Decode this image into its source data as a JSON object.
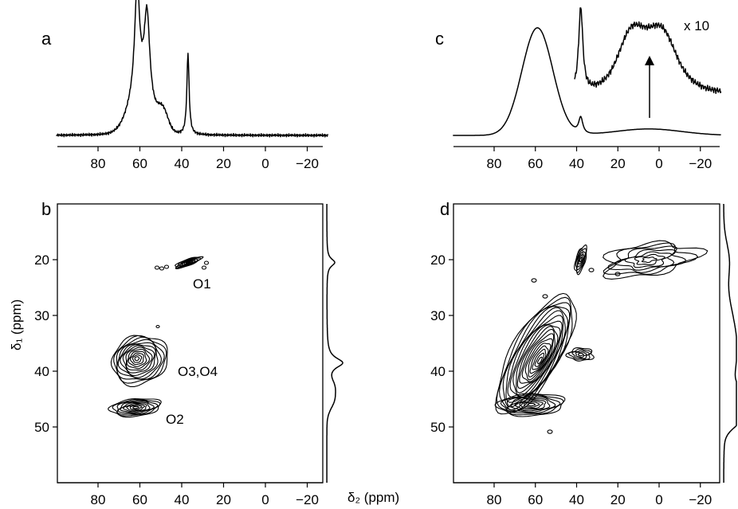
{
  "figure": {
    "x_axis_title": "δ₂ (ppm)",
    "y_axis_title": "δ₁ (ppm)"
  },
  "chart_data": [
    {
      "panel": "a",
      "type": "line",
      "description_kind": "1D spectrum",
      "x_reversed": true,
      "xlim": [
        100,
        -30
      ],
      "x_ticks": [
        80,
        60,
        40,
        20,
        0,
        -20
      ],
      "x_tick_labels": [
        "80",
        "60",
        "40",
        "20",
        "0",
        "−20"
      ],
      "y_axis_shown": false,
      "peaks": [
        {
          "position_ppm": 61,
          "relative_height": 1.0
        },
        {
          "position_ppm": 57,
          "relative_height": 0.87
        },
        {
          "position_ppm": 37,
          "relative_height": 0.71
        }
      ]
    },
    {
      "panel": "b",
      "type": "heatmap",
      "description_kind": "2D contour map",
      "x_reversed": true,
      "xlim": [
        100,
        -30
      ],
      "x_ticks": [
        80,
        60,
        40,
        20,
        0,
        -20
      ],
      "x_tick_labels": [
        "80",
        "60",
        "40",
        "20",
        "0",
        "−20"
      ],
      "y_reversed": true,
      "ylim": [
        10,
        60
      ],
      "y_ticks": [
        20,
        30,
        40,
        50
      ],
      "y_tick_labels": [
        "20",
        "30",
        "40",
        "50"
      ],
      "annotations": [
        {
          "text": "O1",
          "x_ppm": 33,
          "y_ppm": 24
        },
        {
          "text": "O3,O4",
          "x_ppm": 40,
          "y_ppm": 40
        },
        {
          "text": "O2",
          "x_ppm": 50,
          "y_ppm": 48
        }
      ],
      "contour_features": [
        {
          "name": "O1",
          "center_x_ppm": 37,
          "center_y_ppm": 20.5
        },
        {
          "name": "O3,O4",
          "center_x_ppm": 60,
          "center_y_ppm": 38
        },
        {
          "name": "O2",
          "center_x_ppm": 62,
          "center_y_ppm": 46.5
        }
      ],
      "side_projection_peaks_y_ppm": [
        20.5,
        38.5,
        46.5
      ]
    },
    {
      "panel": "c",
      "type": "line",
      "description_kind": "1D spectrum with x10 expansion",
      "x_reversed": true,
      "xlim": [
        100,
        -30
      ],
      "x_ticks": [
        80,
        60,
        40,
        20,
        0,
        -20
      ],
      "x_tick_labels": [
        "80",
        "60",
        "40",
        "20",
        "0",
        "−20"
      ],
      "y_axis_shown": false,
      "inset_label": "x 10",
      "peaks": [
        {
          "position_ppm": 59,
          "relative_height": 1.0
        },
        {
          "position_ppm": 38,
          "relative_height": 0.16
        },
        {
          "position_ppm": 5,
          "relative_height": 0.05
        }
      ]
    },
    {
      "panel": "d",
      "type": "heatmap",
      "description_kind": "2D contour map",
      "x_reversed": true,
      "xlim": [
        100,
        -30
      ],
      "x_ticks": [
        80,
        60,
        40,
        20,
        0,
        -20
      ],
      "x_tick_labels": [
        "80",
        "60",
        "40",
        "20",
        "0",
        "−20"
      ],
      "y_reversed": true,
      "ylim": [
        10,
        60
      ],
      "y_ticks": [
        20,
        30,
        40,
        50
      ],
      "y_tick_labels": [
        "20",
        "30",
        "40",
        "50"
      ],
      "contour_features": [
        {
          "name": "ridge",
          "center_x_ppm": 60,
          "center_y_ppm": 37
        },
        {
          "name": "bottom-blob",
          "center_x_ppm": 62,
          "center_y_ppm": 46
        },
        {
          "name": "O1",
          "center_x_ppm": 38,
          "center_y_ppm": 20
        },
        {
          "name": "right-cluster",
          "center_x_ppm": 5,
          "center_y_ppm": 20
        }
      ],
      "side_projection_peaks_y_ppm": [
        45,
        48
      ]
    }
  ]
}
